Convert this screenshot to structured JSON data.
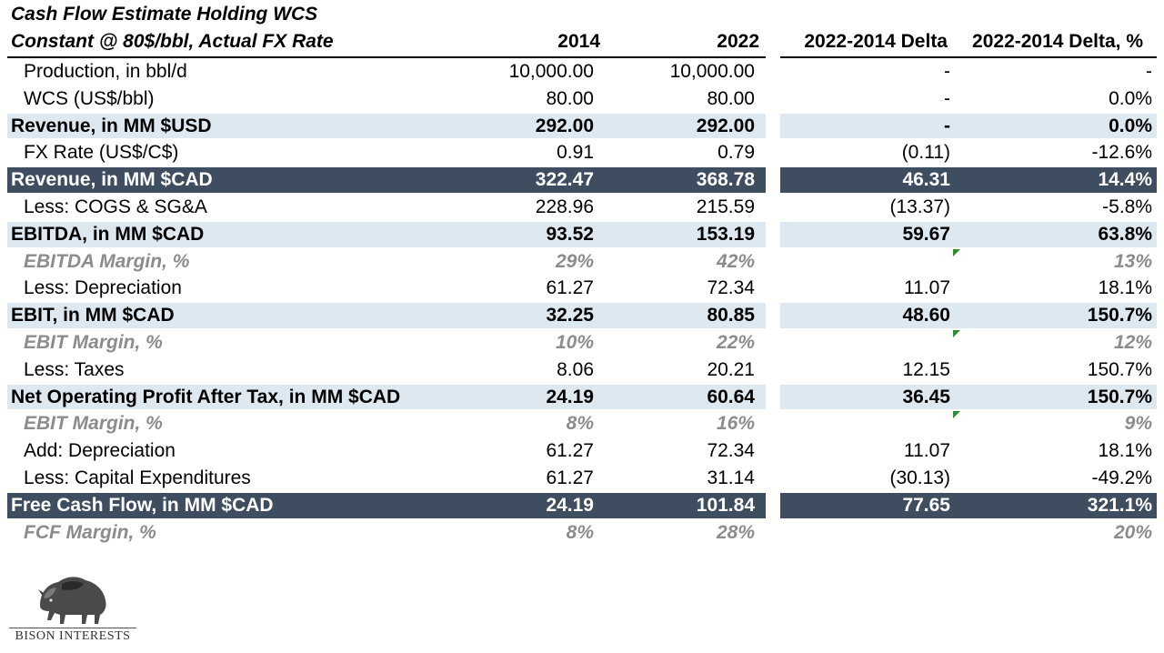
{
  "title_line1": "Cash Flow Estimate Holding WCS",
  "title_line2": "Constant @ 80$/bbl, Actual FX Rate",
  "headers": {
    "y2014": "2014",
    "y2022": "2022",
    "delta": "2022-2014 Delta",
    "delta_pct": "2022-2014 Delta, %"
  },
  "rows": [
    {
      "label": "Production, in bbl/d",
      "v2014": "10,000.00",
      "v2022": "10,000.00",
      "delta": "-",
      "delta_pct": "-"
    },
    {
      "label": "WCS (US$/bbl)",
      "v2014": "80.00",
      "v2022": "80.00",
      "delta": "-",
      "delta_pct": "0.0%"
    },
    {
      "label": "Revenue, in MM $USD",
      "v2014": "292.00",
      "v2022": "292.00",
      "delta": "-",
      "delta_pct": "0.0%"
    },
    {
      "label": "FX Rate (US$/C$)",
      "v2014": "0.91",
      "v2022": "0.79",
      "delta": "(0.11)",
      "delta_pct": "-12.6%"
    },
    {
      "label": "Revenue, in MM $CAD",
      "v2014": "322.47",
      "v2022": "368.78",
      "delta": "46.31",
      "delta_pct": "14.4%"
    },
    {
      "label": "Less: COGS & SG&A",
      "v2014": "228.96",
      "v2022": "215.59",
      "delta": "(13.37)",
      "delta_pct": "-5.8%"
    },
    {
      "label": "EBITDA, in MM $CAD",
      "v2014": "93.52",
      "v2022": "153.19",
      "delta": "59.67",
      "delta_pct": "63.8%"
    },
    {
      "label": "EBITDA Margin, %",
      "v2014": "29%",
      "v2022": "42%",
      "delta": "",
      "delta_pct": "13%"
    },
    {
      "label": "Less: Depreciation",
      "v2014": "61.27",
      "v2022": "72.34",
      "delta": "11.07",
      "delta_pct": "18.1%"
    },
    {
      "label": "EBIT, in MM $CAD",
      "v2014": "32.25",
      "v2022": "80.85",
      "delta": "48.60",
      "delta_pct": "150.7%"
    },
    {
      "label": "EBIT Margin, %",
      "v2014": "10%",
      "v2022": "22%",
      "delta": "",
      "delta_pct": "12%"
    },
    {
      "label": "Less: Taxes",
      "v2014": "8.06",
      "v2022": "20.21",
      "delta": "12.15",
      "delta_pct": "150.7%"
    },
    {
      "label": "Net Operating Profit After Tax, in MM $CAD",
      "v2014": "24.19",
      "v2022": "60.64",
      "delta": "36.45",
      "delta_pct": "150.7%"
    },
    {
      "label": "EBIT Margin, %",
      "v2014": "8%",
      "v2022": "16%",
      "delta": "",
      "delta_pct": "9%"
    },
    {
      "label": "Add: Depreciation",
      "v2014": "61.27",
      "v2022": "72.34",
      "delta": "11.07",
      "delta_pct": "18.1%"
    },
    {
      "label": "Less: Capital Expenditures",
      "v2014": "61.27",
      "v2022": "31.14",
      "delta": "(30.13)",
      "delta_pct": "-49.2%"
    },
    {
      "label": "Free Cash Flow, in MM $CAD",
      "v2014": "24.19",
      "v2022": "101.84",
      "delta": "77.65",
      "delta_pct": "321.1%"
    },
    {
      "label": "FCF Margin, %",
      "v2014": "8%",
      "v2022": "28%",
      "delta": "",
      "delta_pct": "20%"
    }
  ],
  "logo": {
    "text": "BISON INTERESTS"
  },
  "colors": {
    "dark_band": "#3e4d5f",
    "light_band": "#dde8f1",
    "italic_grey": "#8c8c8c",
    "marker": "#2e8b2e"
  }
}
